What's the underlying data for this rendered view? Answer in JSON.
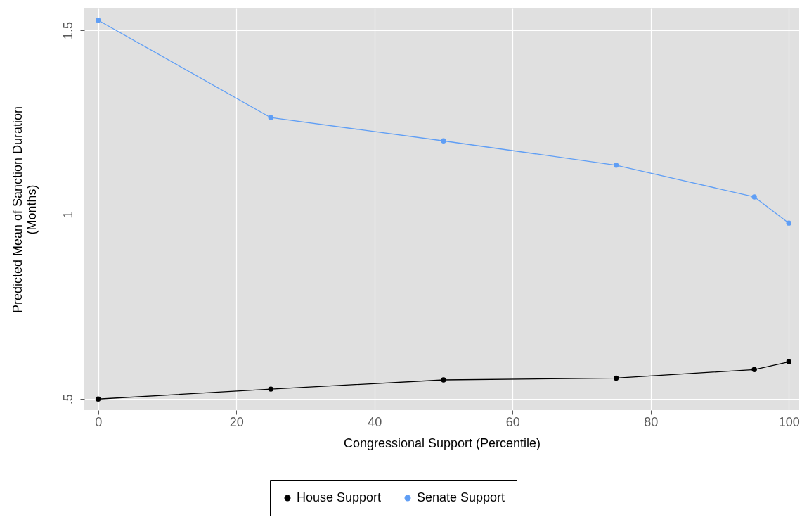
{
  "chart_data": {
    "type": "line",
    "xlabel": "Congressional Support (Percentile)",
    "ylabel": "Predicted Mean of Sanction Duration\n(Months)",
    "x": [
      0,
      25,
      50,
      75,
      95,
      100
    ],
    "series": [
      {
        "name": "House Support",
        "color": "#000000",
        "values": [
          0.5,
          0.527,
          0.552,
          0.557,
          0.58,
          0.601
        ]
      },
      {
        "name": "Senate Support",
        "color": "#5f9ef5",
        "values": [
          1.527,
          1.263,
          1.2,
          1.134,
          1.048,
          0.977
        ]
      }
    ],
    "xlim": [
      -2,
      101.5
    ],
    "ylim": [
      0.47,
      1.559
    ],
    "xticks": [
      0,
      20,
      40,
      60,
      80,
      100
    ],
    "yticks": [
      {
        "value": 0.5,
        "label": ".5"
      },
      1,
      1.5
    ],
    "grid": true,
    "legend": "bottom",
    "marker": "circle",
    "line_style": "solid"
  }
}
